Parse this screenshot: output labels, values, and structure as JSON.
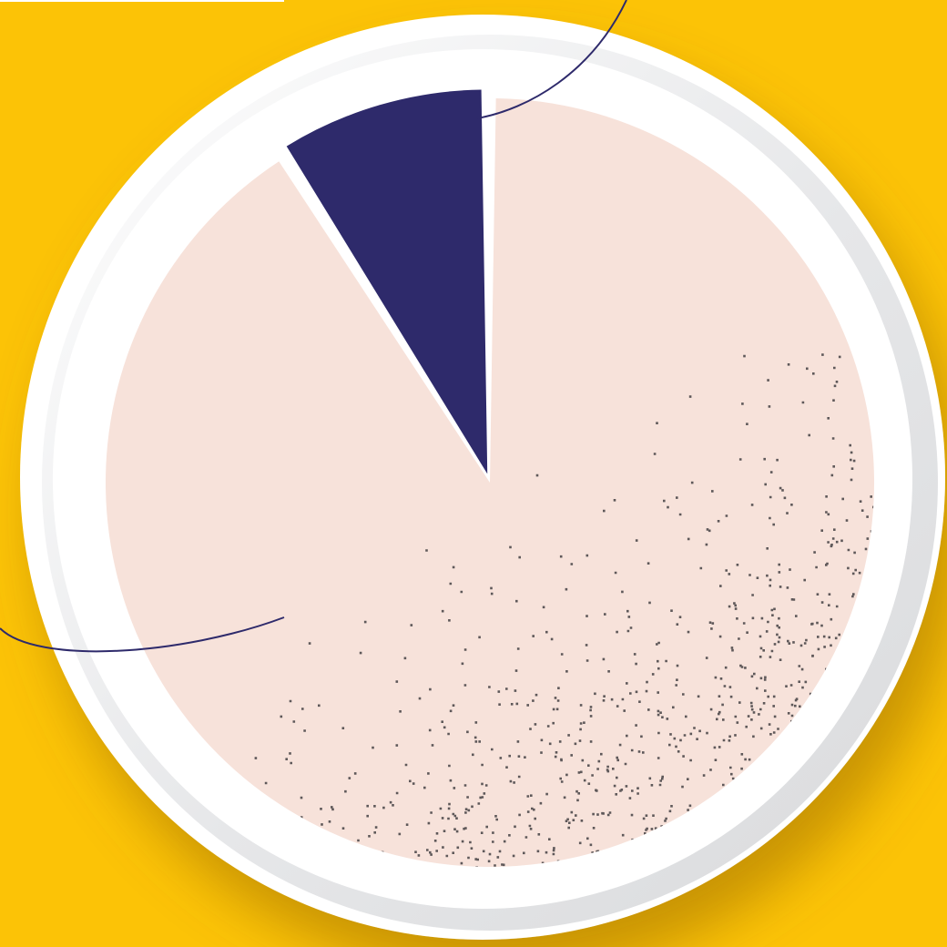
{
  "chart_data": {
    "type": "pie",
    "title": "",
    "start_angle_deg": 0,
    "direction": "clockwise",
    "slices": [
      {
        "value": 91,
        "color": "#F7E2DA",
        "texture": "stipple"
      },
      {
        "value": 9,
        "color": "#2E2A6B",
        "texture": "none",
        "exploded": true
      }
    ]
  },
  "colors": {
    "background": "#FCC306",
    "plate": "#FFFFFF",
    "plate_rim": "#E3E4E6",
    "stipple": "#5E5859",
    "leader_line": "#2E2A6B"
  }
}
